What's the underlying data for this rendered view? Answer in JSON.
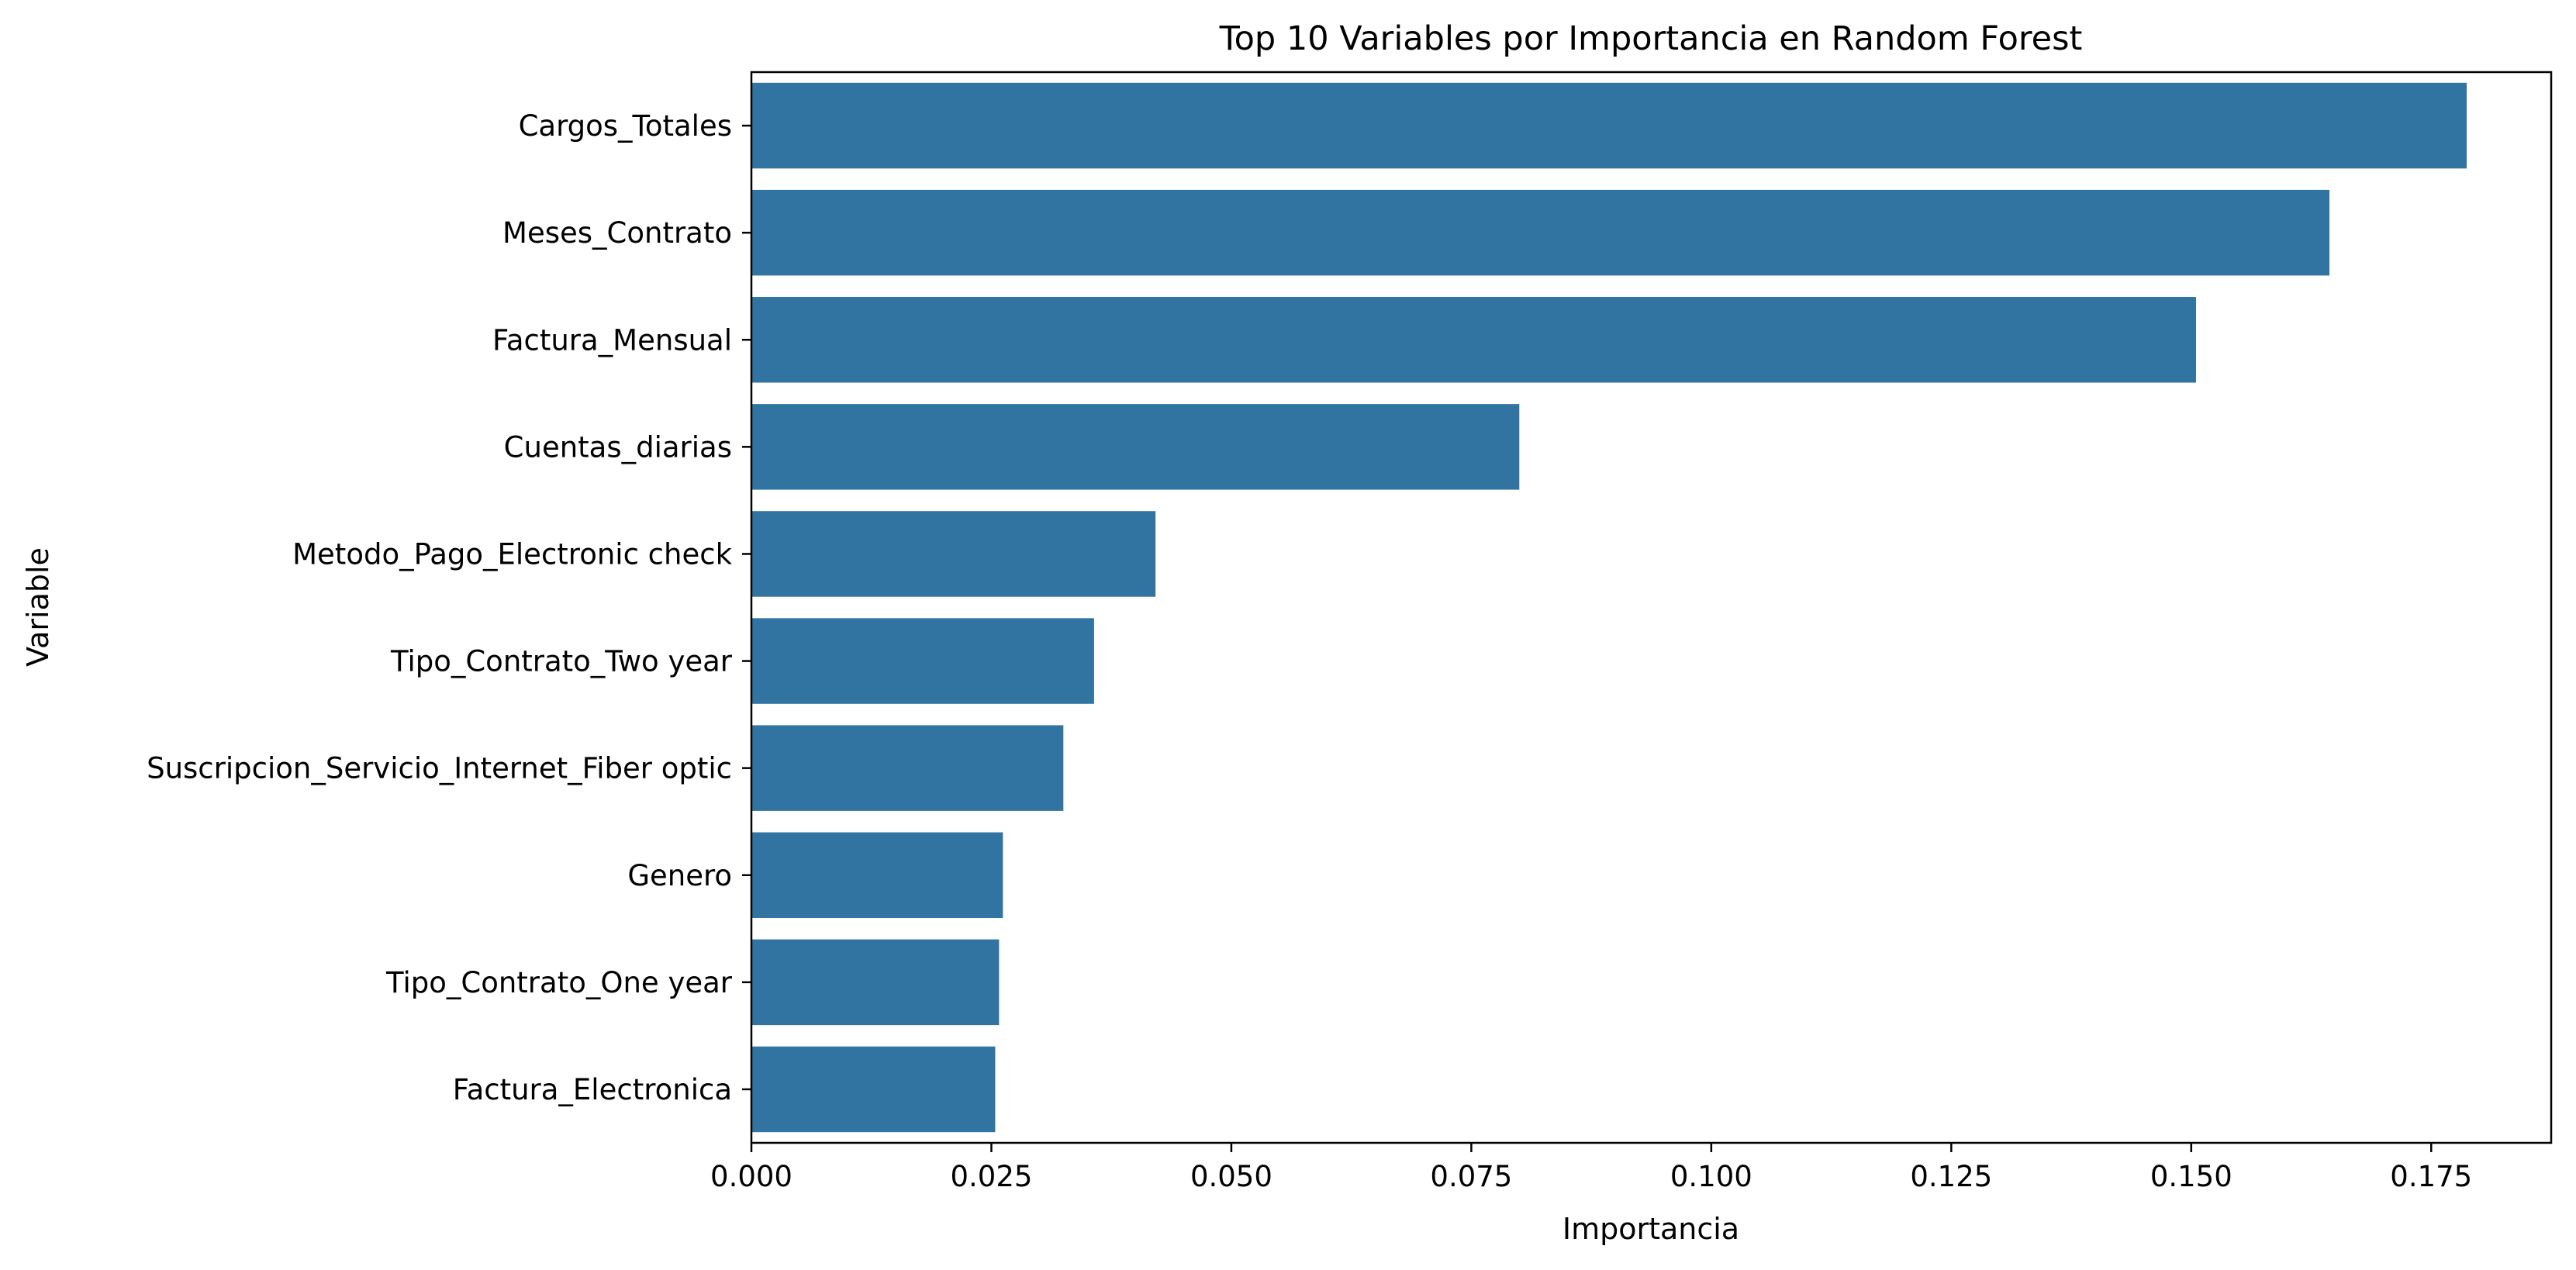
{
  "chart_data": {
    "type": "bar",
    "orientation": "horizontal",
    "title": "Top 10 Variables por Importancia en Random Forest",
    "xlabel": "Importancia",
    "ylabel": "Variable",
    "categories": [
      "Cargos_Totales",
      "Meses_Contrato",
      "Factura_Mensual",
      "Cuentas_diarias",
      "Metodo_Pago_Electronic check",
      "Tipo_Contrato_Two year",
      "Suscripcion_Servicio_Internet_Fiber optic",
      "Genero",
      "Tipo_Contrato_One year",
      "Factura_Electronica"
    ],
    "values": [
      0.1787,
      0.1644,
      0.1505,
      0.08,
      0.0421,
      0.0357,
      0.0325,
      0.0262,
      0.0258,
      0.0254
    ],
    "xlim": [
      0,
      0.1875
    ],
    "xticks": [
      "0.000",
      "0.025",
      "0.050",
      "0.075",
      "0.100",
      "0.125",
      "0.150",
      "0.175"
    ],
    "grid": false,
    "legend": "none",
    "bar_color": "#3274a1"
  }
}
